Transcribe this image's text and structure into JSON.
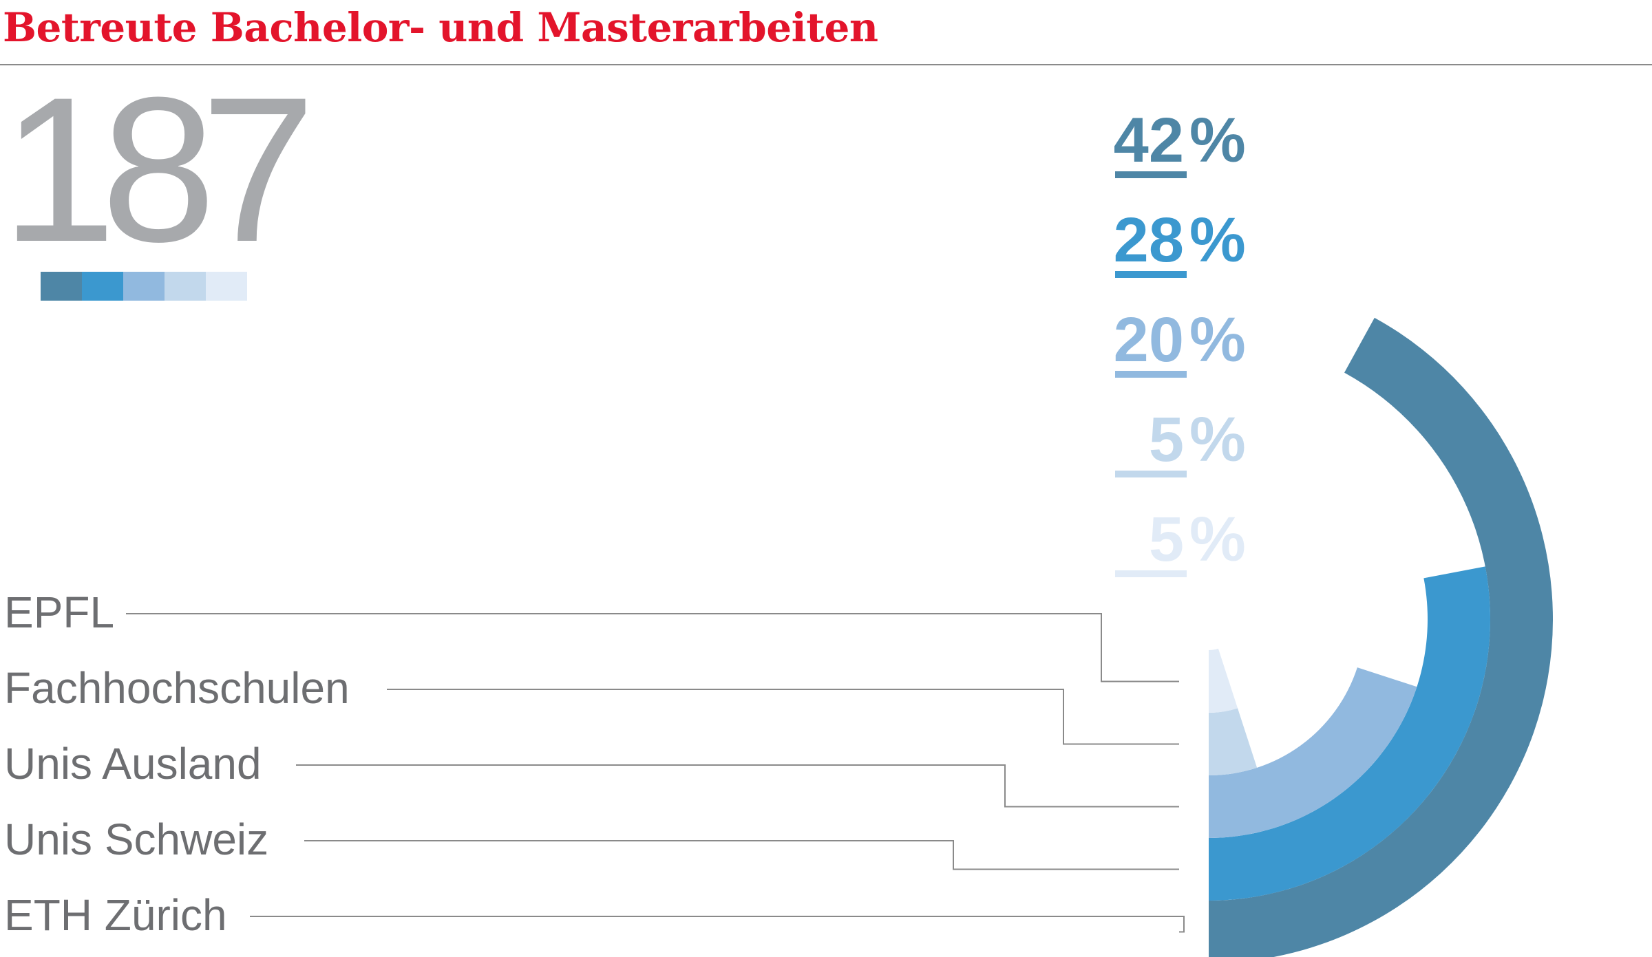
{
  "title": "Betreute Bachelor- und Masterarbeiten",
  "total": "187",
  "colors": [
    "#4e86a6",
    "#3b98cf",
    "#91b9df",
    "#c2d8ec",
    "#e1ebf7"
  ],
  "chart_data": {
    "type": "pie",
    "title": "Betreute Bachelor- und Masterarbeiten",
    "total": 187,
    "unit": "%",
    "categories": [
      "ETH Zürich",
      "Unis Schweiz",
      "Unis Ausland",
      "Fachhochschulen",
      "EPFL"
    ],
    "values": [
      42,
      28,
      20,
      5,
      5
    ],
    "value_labels": [
      "42",
      "28",
      "20",
      "5",
      "5"
    ],
    "colors": [
      "#4e86a6",
      "#3b98cf",
      "#91b9df",
      "#c2d8ec",
      "#e1ebf7"
    ]
  }
}
